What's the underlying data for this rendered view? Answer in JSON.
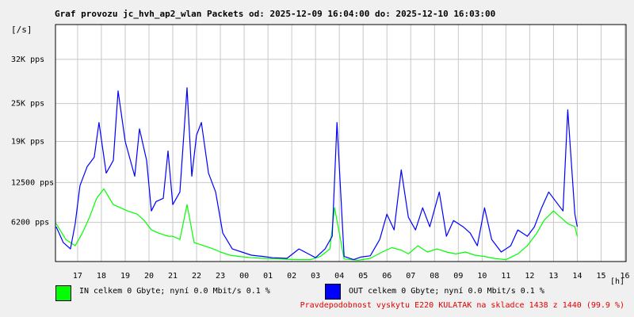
{
  "chart_data": {
    "type": "line",
    "title": "Graf provozu jc_hvh_ap2_wlan Packets od: 2025-12-09 16:04:00 do: 2025-12-10 16:03:00",
    "ylabel": "[/s]",
    "xlabel": "[h]",
    "ylim": [
      0,
      37500
    ],
    "y_ticks": [
      {
        "value": 6200,
        "label": "6200 pps"
      },
      {
        "value": 12500,
        "label": "12500 pps"
      },
      {
        "value": 19000,
        "label": "19K pps"
      },
      {
        "value": 25000,
        "label": "25K pps"
      },
      {
        "value": 32000,
        "label": "32K pps"
      }
    ],
    "x_ticks": [
      "17",
      "18",
      "19",
      "20",
      "21",
      "22",
      "23",
      "00",
      "01",
      "02",
      "03",
      "04",
      "05",
      "06",
      "07",
      "08",
      "09",
      "10",
      "11",
      "12",
      "13",
      "14",
      "15",
      "16"
    ],
    "grid": true,
    "series": [
      {
        "name": "IN",
        "color": "#00ff00",
        "points": [
          [
            16.1,
            6000
          ],
          [
            16.5,
            3500
          ],
          [
            16.9,
            2500
          ],
          [
            17.2,
            4500
          ],
          [
            17.5,
            7000
          ],
          [
            17.8,
            10000
          ],
          [
            18.1,
            11500
          ],
          [
            18.5,
            9000
          ],
          [
            18.8,
            8500
          ],
          [
            19.1,
            8000
          ],
          [
            19.5,
            7500
          ],
          [
            19.8,
            6500
          ],
          [
            20.1,
            5000
          ],
          [
            20.4,
            4500
          ],
          [
            20.8,
            4000
          ],
          [
            21.0,
            4000
          ],
          [
            21.3,
            3500
          ],
          [
            21.6,
            9000
          ],
          [
            21.9,
            3000
          ],
          [
            22.3,
            2500
          ],
          [
            22.7,
            2000
          ],
          [
            23.0,
            1500
          ],
          [
            23.4,
            1000
          ],
          [
            23.8,
            800
          ],
          [
            24.3,
            600
          ],
          [
            24.8,
            500
          ],
          [
            25.5,
            400
          ],
          [
            26.2,
            300
          ],
          [
            26.8,
            300
          ],
          [
            27.2,
            800
          ],
          [
            27.6,
            2000
          ],
          [
            27.8,
            8500
          ],
          [
            28.2,
            400
          ],
          [
            28.8,
            200
          ],
          [
            29.3,
            500
          ],
          [
            29.8,
            1500
          ],
          [
            30.2,
            2200
          ],
          [
            30.6,
            1800
          ],
          [
            30.9,
            1200
          ],
          [
            31.3,
            2500
          ],
          [
            31.7,
            1500
          ],
          [
            32.1,
            2000
          ],
          [
            32.5,
            1500
          ],
          [
            32.9,
            1200
          ],
          [
            33.3,
            1500
          ],
          [
            33.7,
            1000
          ],
          [
            34.1,
            800
          ],
          [
            34.5,
            500
          ],
          [
            35.0,
            300
          ],
          [
            35.5,
            1200
          ],
          [
            35.9,
            2500
          ],
          [
            36.3,
            4500
          ],
          [
            36.6,
            6500
          ],
          [
            37.0,
            8000
          ],
          [
            37.3,
            7000
          ],
          [
            37.6,
            6000
          ],
          [
            37.9,
            5500
          ],
          [
            38.0,
            4000
          ]
        ]
      },
      {
        "name": "OUT",
        "color": "#0000ff",
        "points": [
          [
            16.1,
            5500
          ],
          [
            16.4,
            3000
          ],
          [
            16.7,
            2000
          ],
          [
            16.9,
            6000
          ],
          [
            17.1,
            12000
          ],
          [
            17.4,
            15000
          ],
          [
            17.7,
            16500
          ],
          [
            17.9,
            22000
          ],
          [
            18.2,
            14000
          ],
          [
            18.5,
            16000
          ],
          [
            18.7,
            27000
          ],
          [
            19.0,
            19000
          ],
          [
            19.4,
            13500
          ],
          [
            19.6,
            21000
          ],
          [
            19.9,
            16000
          ],
          [
            20.1,
            8000
          ],
          [
            20.3,
            9500
          ],
          [
            20.6,
            10000
          ],
          [
            20.8,
            17500
          ],
          [
            21.0,
            9000
          ],
          [
            21.3,
            11000
          ],
          [
            21.6,
            27500
          ],
          [
            21.8,
            13500
          ],
          [
            22.0,
            20000
          ],
          [
            22.2,
            22000
          ],
          [
            22.5,
            14000
          ],
          [
            22.8,
            11000
          ],
          [
            23.1,
            4500
          ],
          [
            23.5,
            2000
          ],
          [
            23.9,
            1500
          ],
          [
            24.3,
            1000
          ],
          [
            24.8,
            800
          ],
          [
            25.2,
            600
          ],
          [
            25.8,
            500
          ],
          [
            26.3,
            2000
          ],
          [
            26.7,
            1200
          ],
          [
            27.0,
            600
          ],
          [
            27.4,
            2000
          ],
          [
            27.7,
            4000
          ],
          [
            27.9,
            22000
          ],
          [
            28.2,
            800
          ],
          [
            28.6,
            300
          ],
          [
            28.9,
            700
          ],
          [
            29.3,
            900
          ],
          [
            29.7,
            3500
          ],
          [
            30.0,
            7500
          ],
          [
            30.3,
            5000
          ],
          [
            30.6,
            14500
          ],
          [
            30.9,
            7000
          ],
          [
            31.2,
            5000
          ],
          [
            31.5,
            8500
          ],
          [
            31.8,
            5500
          ],
          [
            32.2,
            11000
          ],
          [
            32.5,
            4000
          ],
          [
            32.8,
            6500
          ],
          [
            33.2,
            5500
          ],
          [
            33.5,
            4500
          ],
          [
            33.8,
            2500
          ],
          [
            34.1,
            8500
          ],
          [
            34.4,
            3500
          ],
          [
            34.8,
            1500
          ],
          [
            35.2,
            2500
          ],
          [
            35.5,
            5000
          ],
          [
            35.9,
            4000
          ],
          [
            36.2,
            5500
          ],
          [
            36.5,
            8500
          ],
          [
            36.8,
            11000
          ],
          [
            37.1,
            9500
          ],
          [
            37.4,
            8000
          ],
          [
            37.6,
            24000
          ],
          [
            37.9,
            7500
          ],
          [
            38.0,
            5500
          ]
        ]
      }
    ]
  },
  "legend": {
    "in_text": "IN celkem 0 Gbyte; nyní   0.0 Mbit/s 0.1 %",
    "out_text": "OUT celkem 0 Gbyte; nyní   0.0 Mbit/s 0.1 %",
    "in_color": "#00ff00",
    "out_color": "#0000ff"
  },
  "footer": "Pravdepodobnost vyskytu E220 KULATAK na skladce 1438 z 1440 (99.9 %)"
}
